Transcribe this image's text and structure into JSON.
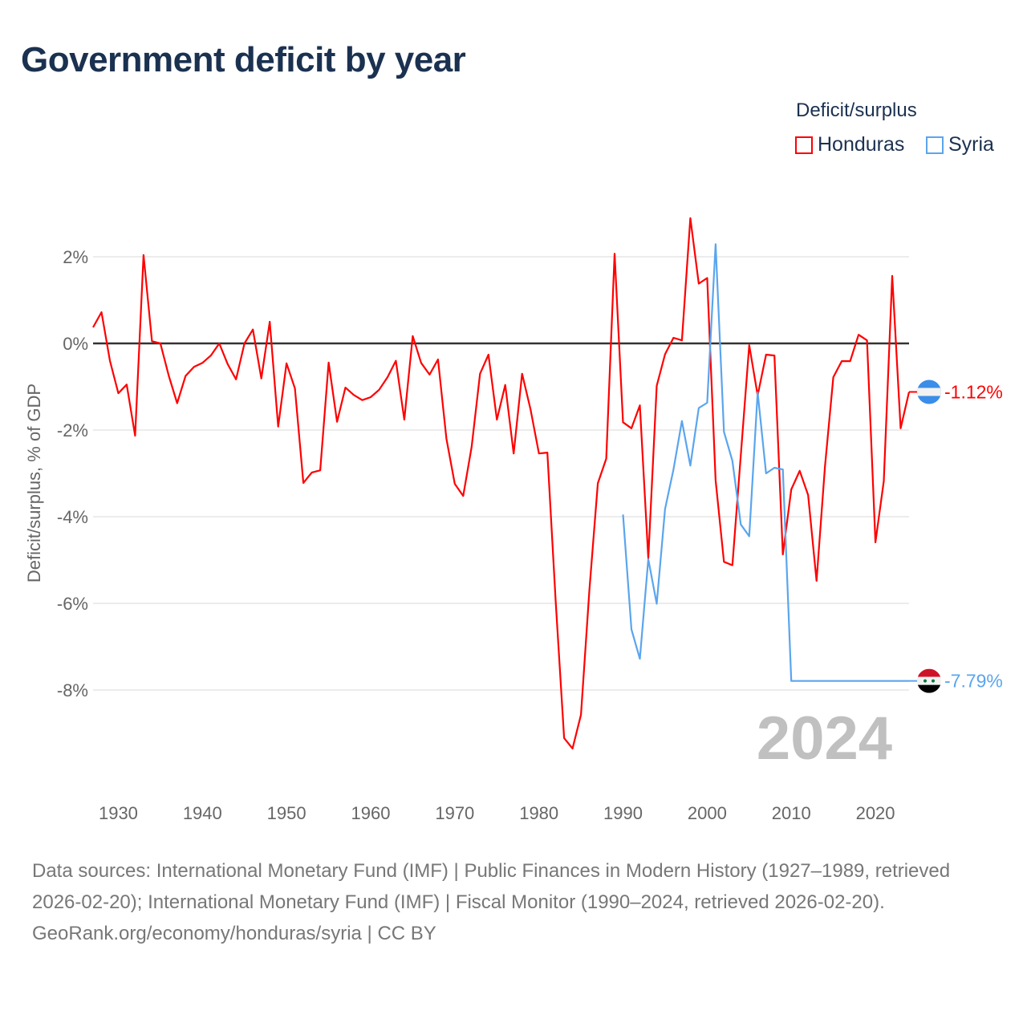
{
  "chart_data": {
    "type": "line",
    "title": "Government deficit by year",
    "ylabel": "Deficit/surplus, % of GDP",
    "xlabel": "",
    "xlim": [
      1927,
      2024
    ],
    "ylim": [
      -9.9,
      3.0
    ],
    "x_ticks": [
      1930,
      1940,
      1950,
      1960,
      1970,
      1980,
      1990,
      2000,
      2010,
      2020
    ],
    "y_ticks": [
      2,
      0,
      -2,
      -4,
      -6,
      -8
    ],
    "y_tick_labels": [
      "2%",
      "0%",
      "-2%",
      "-4%",
      "-6%",
      "-8%"
    ],
    "grid": true,
    "legend_title": "Deficit/surplus",
    "legend_position": "top-right",
    "current_year_label": "2024",
    "series": [
      {
        "name": "Honduras",
        "color": "#ff0000",
        "end_label": "-1.12%",
        "start_year": 1927,
        "values": [
          0.37,
          0.72,
          -0.4,
          -1.15,
          -0.95,
          -2.13,
          2.04,
          0.05,
          0.0,
          -0.75,
          -1.38,
          -0.75,
          -0.54,
          -0.45,
          -0.28,
          0.0,
          -0.48,
          -0.83,
          0.0,
          0.32,
          -0.81,
          0.5,
          -1.92,
          -0.46,
          -1.04,
          -3.22,
          -2.98,
          -2.93,
          -0.44,
          -1.81,
          -1.02,
          -1.19,
          -1.31,
          -1.24,
          -1.07,
          -0.78,
          -0.4,
          -1.76,
          0.17,
          -0.45,
          -0.72,
          -0.37,
          -2.2,
          -3.24,
          -3.52,
          -2.39,
          -0.7,
          -0.26,
          -1.76,
          -0.96,
          -2.54,
          -0.7,
          -1.52,
          -2.54,
          -2.52,
          -5.96,
          -9.11,
          -9.35,
          -8.57,
          -5.69,
          -3.23,
          -2.66,
          2.07,
          -1.82,
          -1.96,
          -1.43,
          -4.96,
          -0.98,
          -0.25,
          0.13,
          0.07,
          2.89,
          1.38,
          1.51,
          -3.16,
          -5.04,
          -5.12,
          -2.58,
          -0.04,
          -1.2,
          -0.26,
          -0.28,
          -4.87,
          -3.37,
          -2.94,
          -3.5,
          -5.48,
          -2.84,
          -0.78,
          -0.41,
          -0.41,
          0.2,
          0.07,
          -4.59,
          -3.18,
          1.56,
          -1.96,
          -1.12
        ]
      },
      {
        "name": "Syria",
        "color": "#5aa5ee",
        "end_label": "-7.79%",
        "start_year": 1990,
        "values": [
          -3.95,
          -6.6,
          -7.28,
          -4.98,
          -6.01,
          -3.82,
          -2.91,
          -1.79,
          -2.82,
          -1.49,
          -1.37,
          2.29,
          -2.04,
          -2.71,
          -4.18,
          -4.45,
          -1.13,
          -3.0,
          -2.87,
          -2.91,
          -7.79,
          -7.79,
          -7.79,
          -7.79,
          -7.79,
          -7.79,
          -7.79,
          -7.79,
          -7.79,
          -7.79,
          -7.79,
          -7.79,
          -7.79,
          -7.79,
          -7.79
        ]
      }
    ]
  },
  "footer": {
    "sources": "Data sources: International Monetary Fund (IMF) | Public Finances in Modern History (1927–1989, retrieved 2026-02-20); International Monetary Fund (IMF) | Fiscal Monitor (1990–2024, retrieved 2026-02-20).",
    "credit": "GeoRank.org/economy/honduras/syria | CC BY"
  }
}
